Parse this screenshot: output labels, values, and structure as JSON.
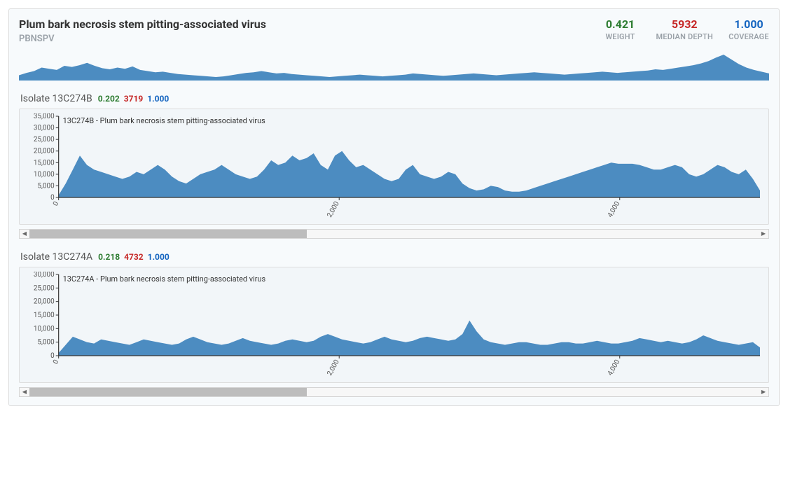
{
  "colors": {
    "area_fill": "#4c8cc1",
    "axis": "#333333",
    "bg_card": "#f7fafc",
    "bg_chart": "#f2f6f9",
    "weight": "#2e7d32",
    "depth": "#c62828",
    "depth2": "#c62828",
    "coverage": "#1565c0",
    "muted": "#9aa1a8",
    "tick_label": "#555555"
  },
  "header": {
    "title": "Plum bark necrosis stem pitting-associated virus",
    "abbr": "PBNSPV",
    "metrics": [
      {
        "value": "0.421",
        "label": "WEIGHT",
        "color_key": "weight"
      },
      {
        "value": "5932",
        "label": "MEDIAN DEPTH",
        "color_key": "depth"
      },
      {
        "value": "1.000",
        "label": "COVERAGE",
        "color_key": "coverage"
      }
    ]
  },
  "sparkline": {
    "height_max": 100,
    "values": [
      18,
      26,
      32,
      44,
      40,
      36,
      50,
      46,
      52,
      60,
      50,
      42,
      38,
      44,
      40,
      48,
      36,
      32,
      28,
      30,
      26,
      22,
      20,
      18,
      16,
      14,
      12,
      14,
      18,
      22,
      26,
      28,
      32,
      28,
      24,
      26,
      22,
      20,
      18,
      16,
      14,
      12,
      14,
      16,
      18,
      20,
      18,
      16,
      14,
      16,
      18,
      20,
      24,
      22,
      20,
      18,
      16,
      18,
      20,
      22,
      24,
      22,
      20,
      18,
      20,
      22,
      24,
      26,
      28,
      26,
      24,
      22,
      20,
      22,
      24,
      26,
      28,
      30,
      28,
      26,
      28,
      30,
      32,
      34,
      38,
      36,
      40,
      44,
      48,
      52,
      58,
      66,
      78,
      88,
      72,
      56,
      44,
      36,
      30,
      24
    ]
  },
  "isolates": [
    {
      "name_prefix": "Isolate ",
      "name": "13C274B",
      "mini": [
        {
          "value": "0.202",
          "color_key": "weight"
        },
        {
          "value": "3719",
          "color_key": "depth2"
        },
        {
          "value": "1.000",
          "color_key": "coverage"
        }
      ],
      "chart": {
        "title": "13C274B - Plum bark necrosis stem pitting-associated virus",
        "y": {
          "min": 0,
          "max": 35000,
          "step": 5000
        },
        "x": {
          "min": 0,
          "max": 5000,
          "ticks": [
            0,
            2000,
            4000
          ]
        },
        "values": [
          1000,
          6000,
          12000,
          18000,
          14000,
          12000,
          11000,
          10000,
          9000,
          8000,
          9000,
          11000,
          10000,
          12000,
          14000,
          12000,
          9000,
          7000,
          6000,
          8000,
          10000,
          11000,
          12000,
          14000,
          12000,
          10000,
          9000,
          8000,
          9000,
          12000,
          16000,
          14000,
          15000,
          18000,
          16000,
          17000,
          19000,
          14000,
          12000,
          18000,
          20000,
          16000,
          13000,
          14000,
          12000,
          10000,
          8000,
          7000,
          8000,
          12000,
          14000,
          10000,
          9000,
          8000,
          9000,
          11000,
          10000,
          6000,
          4000,
          3000,
          3500,
          5000,
          4500,
          3000,
          2500,
          2500,
          3000,
          4000,
          5000,
          6000,
          7000,
          8000,
          9000,
          10000,
          11000,
          12000,
          13000,
          14000,
          15000,
          14500,
          14500,
          14500,
          14000,
          13000,
          12000,
          12000,
          13000,
          14000,
          13000,
          10000,
          9000,
          10000,
          12000,
          14000,
          13000,
          11000,
          10000,
          12000,
          8000,
          3000
        ],
        "scroll_thumb_percent": 38
      }
    },
    {
      "name_prefix": "Isolate ",
      "name": "13C274A",
      "mini": [
        {
          "value": "0.218",
          "color_key": "weight"
        },
        {
          "value": "4732",
          "color_key": "depth2"
        },
        {
          "value": "1.000",
          "color_key": "coverage"
        }
      ],
      "chart": {
        "title": "13C274A - Plum bark necrosis stem pitting-associated virus",
        "y": {
          "min": 0,
          "max": 30000,
          "step": 5000
        },
        "x": {
          "min": 0,
          "max": 5000,
          "ticks": [
            0,
            2000,
            4000
          ]
        },
        "values": [
          1000,
          4000,
          7000,
          6000,
          5000,
          4500,
          6000,
          5500,
          5000,
          4500,
          4000,
          5000,
          6000,
          5500,
          5000,
          4500,
          4000,
          4500,
          6000,
          7000,
          6000,
          5000,
          4500,
          4000,
          4500,
          5500,
          6500,
          5500,
          5000,
          4500,
          4000,
          4500,
          5500,
          6000,
          5500,
          5000,
          5500,
          7000,
          8000,
          7000,
          6000,
          5500,
          5000,
          4500,
          5000,
          6000,
          7000,
          6000,
          5500,
          5000,
          5500,
          6500,
          7000,
          6500,
          6000,
          5500,
          6000,
          8000,
          13000,
          9000,
          6000,
          5000,
          4500,
          4000,
          4500,
          5000,
          5000,
          4500,
          4000,
          4000,
          4500,
          5000,
          5000,
          4500,
          4500,
          5000,
          5500,
          5000,
          4500,
          4500,
          5000,
          5500,
          6500,
          6000,
          5500,
          5000,
          5500,
          5000,
          4500,
          5000,
          6000,
          7500,
          6500,
          5500,
          5000,
          4500,
          4000,
          4500,
          5000,
          3000
        ],
        "scroll_thumb_percent": 38
      }
    }
  ]
}
